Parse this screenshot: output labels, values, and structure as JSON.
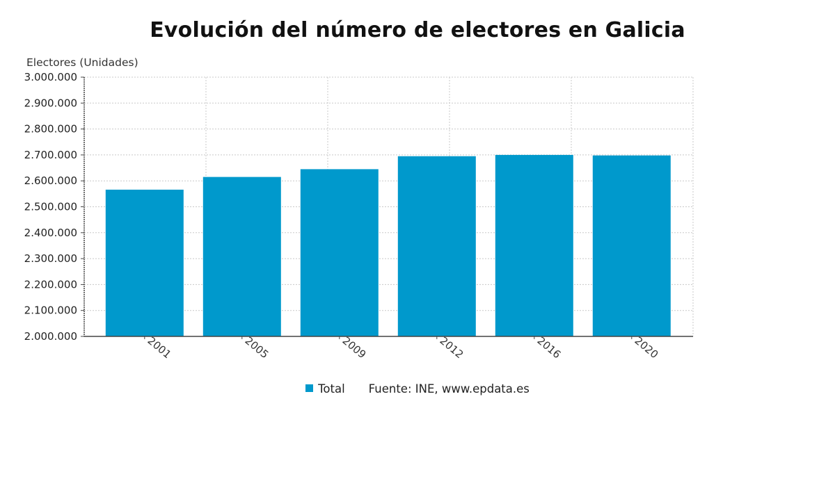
{
  "colors": {
    "bar": "#0099cc",
    "grid": "#c8c8c8",
    "axis": "#444444"
  },
  "chart_data": {
    "type": "bar",
    "title": "Evolución del número de electores en Galicia",
    "ylabel": "Electores (Unidades)",
    "xlabel": "",
    "categories": [
      "2001",
      "2005",
      "2009",
      "2012",
      "2016",
      "2020"
    ],
    "series": [
      {
        "name": "Total",
        "values": [
          2566000,
          2615000,
          2645000,
          2695000,
          2700000,
          2698000
        ]
      }
    ],
    "ylim": [
      2000000,
      3000000
    ],
    "yticks": [
      "2.000.000",
      "2.100.000",
      "2.200.000",
      "2.300.000",
      "2.400.000",
      "2.500.000",
      "2.600.000",
      "2.700.000",
      "2.800.000",
      "2.900.000",
      "3.000.000"
    ],
    "grid": true,
    "legend_position": "bottom",
    "source": "Fuente: INE, www.epdata.es"
  }
}
